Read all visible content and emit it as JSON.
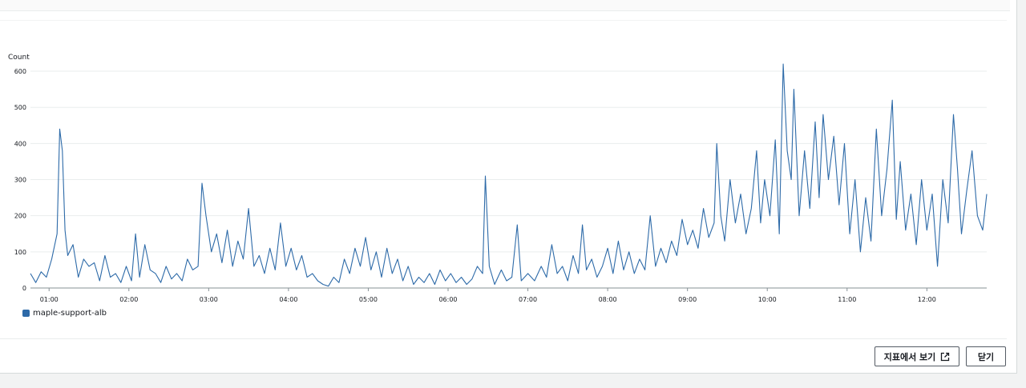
{
  "buttons": {
    "view_metrics": "지표에서 보기",
    "close": "닫기"
  },
  "icons": {
    "external_link": "external-link-icon"
  },
  "colors": {
    "series": "#2d6aa8",
    "grid": "#eaeded",
    "axis": "#879196"
  },
  "chart_data": {
    "type": "line",
    "ylabel": "Count",
    "ylim": [
      0,
      620
    ],
    "yticks": [
      0,
      100,
      200,
      300,
      400,
      500,
      600
    ],
    "x_ticks": [
      "01:00",
      "02:00",
      "03:00",
      "04:00",
      "05:00",
      "06:00",
      "07:00",
      "08:00",
      "09:00",
      "10:00",
      "11:00",
      "12:00"
    ],
    "x_start": "00:46",
    "x_end": "12:45",
    "grid": true,
    "legend_position": "bottom-left",
    "series": [
      {
        "name": "maple-support-alb",
        "color": "#2d6aa8",
        "points": [
          [
            "00:46",
            40
          ],
          [
            "00:50",
            15
          ],
          [
            "00:54",
            45
          ],
          [
            "00:58",
            30
          ],
          [
            "01:02",
            80
          ],
          [
            "01:06",
            150
          ],
          [
            "01:08",
            440
          ],
          [
            "01:10",
            380
          ],
          [
            "01:12",
            160
          ],
          [
            "01:14",
            90
          ],
          [
            "01:18",
            120
          ],
          [
            "01:22",
            30
          ],
          [
            "01:26",
            80
          ],
          [
            "01:30",
            60
          ],
          [
            "01:34",
            70
          ],
          [
            "01:38",
            20
          ],
          [
            "01:42",
            90
          ],
          [
            "01:46",
            30
          ],
          [
            "01:50",
            40
          ],
          [
            "01:54",
            15
          ],
          [
            "01:58",
            60
          ],
          [
            "02:02",
            20
          ],
          [
            "02:05",
            150
          ],
          [
            "02:08",
            30
          ],
          [
            "02:12",
            120
          ],
          [
            "02:16",
            50
          ],
          [
            "02:20",
            40
          ],
          [
            "02:24",
            15
          ],
          [
            "02:28",
            60
          ],
          [
            "02:32",
            25
          ],
          [
            "02:36",
            40
          ],
          [
            "02:40",
            20
          ],
          [
            "02:44",
            80
          ],
          [
            "02:48",
            50
          ],
          [
            "02:52",
            60
          ],
          [
            "02:55",
            290
          ],
          [
            "02:58",
            200
          ],
          [
            "03:02",
            100
          ],
          [
            "03:06",
            150
          ],
          [
            "03:10",
            70
          ],
          [
            "03:14",
            160
          ],
          [
            "03:18",
            60
          ],
          [
            "03:22",
            130
          ],
          [
            "03:26",
            80
          ],
          [
            "03:30",
            220
          ],
          [
            "03:34",
            60
          ],
          [
            "03:38",
            90
          ],
          [
            "03:42",
            40
          ],
          [
            "03:46",
            110
          ],
          [
            "03:50",
            50
          ],
          [
            "03:54",
            180
          ],
          [
            "03:58",
            60
          ],
          [
            "04:02",
            110
          ],
          [
            "04:06",
            50
          ],
          [
            "04:10",
            90
          ],
          [
            "04:14",
            30
          ],
          [
            "04:18",
            40
          ],
          [
            "04:22",
            20
          ],
          [
            "04:26",
            10
          ],
          [
            "04:30",
            5
          ],
          [
            "04:34",
            30
          ],
          [
            "04:38",
            15
          ],
          [
            "04:42",
            80
          ],
          [
            "04:46",
            40
          ],
          [
            "04:50",
            110
          ],
          [
            "04:54",
            60
          ],
          [
            "04:58",
            140
          ],
          [
            "05:02",
            50
          ],
          [
            "05:06",
            100
          ],
          [
            "05:10",
            30
          ],
          [
            "05:14",
            110
          ],
          [
            "05:18",
            40
          ],
          [
            "05:22",
            80
          ],
          [
            "05:26",
            20
          ],
          [
            "05:30",
            60
          ],
          [
            "05:34",
            10
          ],
          [
            "05:38",
            30
          ],
          [
            "05:42",
            15
          ],
          [
            "05:46",
            40
          ],
          [
            "05:50",
            10
          ],
          [
            "05:54",
            50
          ],
          [
            "05:58",
            20
          ],
          [
            "06:02",
            40
          ],
          [
            "06:06",
            15
          ],
          [
            "06:10",
            30
          ],
          [
            "06:14",
            10
          ],
          [
            "06:18",
            25
          ],
          [
            "06:22",
            60
          ],
          [
            "06:26",
            40
          ],
          [
            "06:28",
            310
          ],
          [
            "06:31",
            60
          ],
          [
            "06:35",
            10
          ],
          [
            "06:40",
            50
          ],
          [
            "06:44",
            20
          ],
          [
            "06:48",
            30
          ],
          [
            "06:52",
            175
          ],
          [
            "06:55",
            20
          ],
          [
            "07:00",
            40
          ],
          [
            "07:05",
            20
          ],
          [
            "07:10",
            60
          ],
          [
            "07:14",
            30
          ],
          [
            "07:18",
            120
          ],
          [
            "07:22",
            40
          ],
          [
            "07:26",
            60
          ],
          [
            "07:30",
            20
          ],
          [
            "07:34",
            90
          ],
          [
            "07:38",
            40
          ],
          [
            "07:41",
            175
          ],
          [
            "07:44",
            50
          ],
          [
            "07:48",
            80
          ],
          [
            "07:52",
            30
          ],
          [
            "07:56",
            60
          ],
          [
            "08:00",
            110
          ],
          [
            "08:04",
            40
          ],
          [
            "08:08",
            130
          ],
          [
            "08:12",
            50
          ],
          [
            "08:16",
            100
          ],
          [
            "08:20",
            40
          ],
          [
            "08:24",
            80
          ],
          [
            "08:28",
            50
          ],
          [
            "08:32",
            200
          ],
          [
            "08:36",
            60
          ],
          [
            "08:40",
            110
          ],
          [
            "08:44",
            70
          ],
          [
            "08:48",
            130
          ],
          [
            "08:52",
            90
          ],
          [
            "08:56",
            190
          ],
          [
            "09:00",
            120
          ],
          [
            "09:04",
            160
          ],
          [
            "09:08",
            110
          ],
          [
            "09:12",
            220
          ],
          [
            "09:16",
            140
          ],
          [
            "09:20",
            180
          ],
          [
            "09:22",
            400
          ],
          [
            "09:25",
            200
          ],
          [
            "09:28",
            130
          ],
          [
            "09:32",
            300
          ],
          [
            "09:36",
            180
          ],
          [
            "09:40",
            260
          ],
          [
            "09:44",
            150
          ],
          [
            "09:48",
            220
          ],
          [
            "09:52",
            380
          ],
          [
            "09:55",
            180
          ],
          [
            "09:58",
            300
          ],
          [
            "10:02",
            200
          ],
          [
            "10:06",
            410
          ],
          [
            "10:09",
            150
          ],
          [
            "10:12",
            620
          ],
          [
            "10:15",
            380
          ],
          [
            "10:18",
            300
          ],
          [
            "10:20",
            550
          ],
          [
            "10:24",
            200
          ],
          [
            "10:28",
            380
          ],
          [
            "10:32",
            220
          ],
          [
            "10:36",
            460
          ],
          [
            "10:39",
            250
          ],
          [
            "10:42",
            480
          ],
          [
            "10:46",
            300
          ],
          [
            "10:50",
            420
          ],
          [
            "10:54",
            230
          ],
          [
            "10:58",
            400
          ],
          [
            "11:02",
            150
          ],
          [
            "11:06",
            300
          ],
          [
            "11:10",
            100
          ],
          [
            "11:14",
            250
          ],
          [
            "11:18",
            130
          ],
          [
            "11:22",
            440
          ],
          [
            "11:26",
            200
          ],
          [
            "11:30",
            330
          ],
          [
            "11:34",
            520
          ],
          [
            "11:37",
            190
          ],
          [
            "11:40",
            350
          ],
          [
            "11:44",
            160
          ],
          [
            "11:48",
            260
          ],
          [
            "11:52",
            120
          ],
          [
            "11:56",
            300
          ],
          [
            "12:00",
            160
          ],
          [
            "12:04",
            260
          ],
          [
            "12:08",
            60
          ],
          [
            "12:12",
            300
          ],
          [
            "12:16",
            180
          ],
          [
            "12:20",
            480
          ],
          [
            "12:23",
            330
          ],
          [
            "12:26",
            150
          ],
          [
            "12:30",
            270
          ],
          [
            "12:34",
            380
          ],
          [
            "12:38",
            200
          ],
          [
            "12:42",
            160
          ],
          [
            "12:45",
            260
          ]
        ]
      }
    ]
  }
}
